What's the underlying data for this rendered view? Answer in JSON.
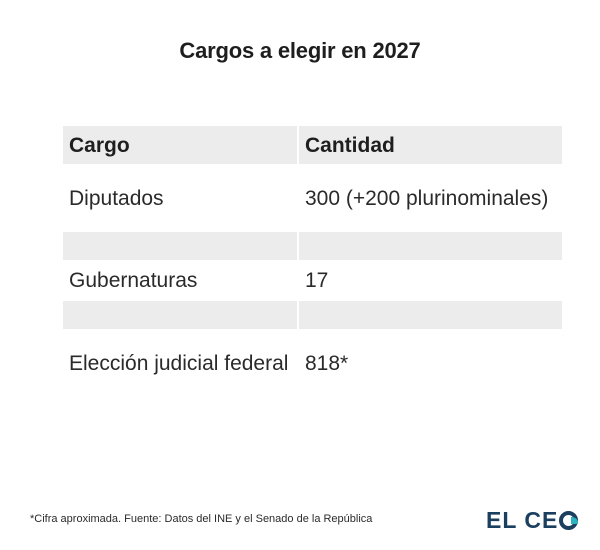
{
  "chart_data": {
    "type": "table",
    "title": "Cargos a elegir en 2027",
    "columns": [
      "Cargo",
      "Cantidad"
    ],
    "rows": [
      {
        "cargo": "Diputados",
        "cantidad": "300 (+200 plurinominales)"
      },
      {
        "cargo": "",
        "cantidad": ""
      },
      {
        "cargo": "Gubernaturas",
        "cantidad": "17"
      },
      {
        "cargo": "",
        "cantidad": ""
      },
      {
        "cargo": "Elección judicial federal",
        "cantidad": "818*"
      }
    ],
    "footnote": "*Cifra aproximada. Fuente: Datos del INE y el Senado de la República"
  },
  "brand": {
    "logo_text_prefix": "EL CE",
    "logo_text_last": "O",
    "color_primary": "#1b3f5e",
    "color_accent": "#2bb3c0"
  },
  "colors": {
    "header_bg": "#ececec",
    "shaded_row_bg": "#ececec"
  }
}
